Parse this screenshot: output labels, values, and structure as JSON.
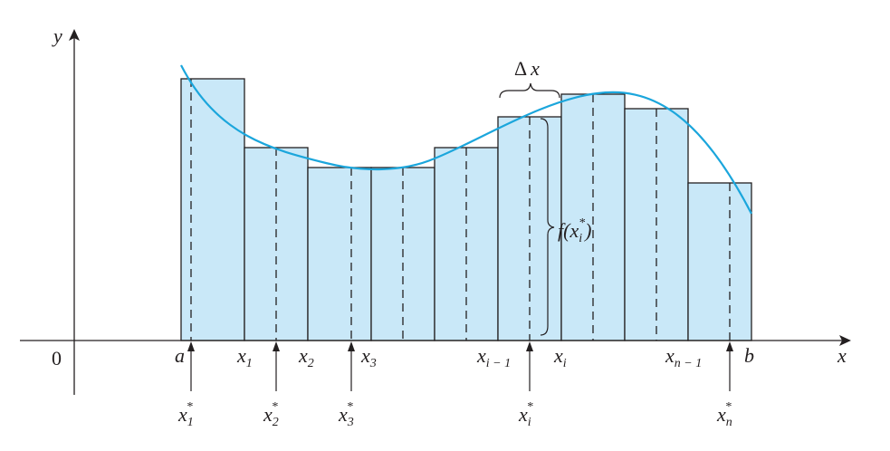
{
  "axes": {
    "x_label": "x",
    "y_label": "y",
    "origin_label": "0"
  },
  "ticks": [
    {
      "id": "a",
      "base": "a",
      "sub": ""
    },
    {
      "id": "x1",
      "base": "x",
      "sub": "1"
    },
    {
      "id": "x2",
      "base": "x",
      "sub": "2"
    },
    {
      "id": "x3",
      "base": "x",
      "sub": "3"
    },
    {
      "id": "xim1",
      "base": "x",
      "sub": "i − 1"
    },
    {
      "id": "xi",
      "base": "x",
      "sub": "i"
    },
    {
      "id": "xnm1",
      "base": "x",
      "sub": "n − 1"
    },
    {
      "id": "b",
      "base": "b",
      "sub": ""
    }
  ],
  "sample_points": [
    {
      "id": "x1s",
      "base": "x",
      "sub": "1",
      "sup": "*"
    },
    {
      "id": "x2s",
      "base": "x",
      "sub": "2",
      "sup": "*"
    },
    {
      "id": "x3s",
      "base": "x",
      "sub": "3",
      "sup": "*"
    },
    {
      "id": "xis",
      "base": "x",
      "sub": "i",
      "sup": "*"
    },
    {
      "id": "xns",
      "base": "x",
      "sub": "n",
      "sup": "*"
    }
  ],
  "annotations": {
    "delta_x": {
      "delta": "Δ",
      "var": "x"
    },
    "height": {
      "f": "f",
      "open": "(",
      "var": "x",
      "sub": "i",
      "sup": "*",
      "close": ")"
    }
  },
  "colors": {
    "rect_fill": "#c9e8f8",
    "curve": "#1ba6dc",
    "ink": "#231f20"
  }
}
